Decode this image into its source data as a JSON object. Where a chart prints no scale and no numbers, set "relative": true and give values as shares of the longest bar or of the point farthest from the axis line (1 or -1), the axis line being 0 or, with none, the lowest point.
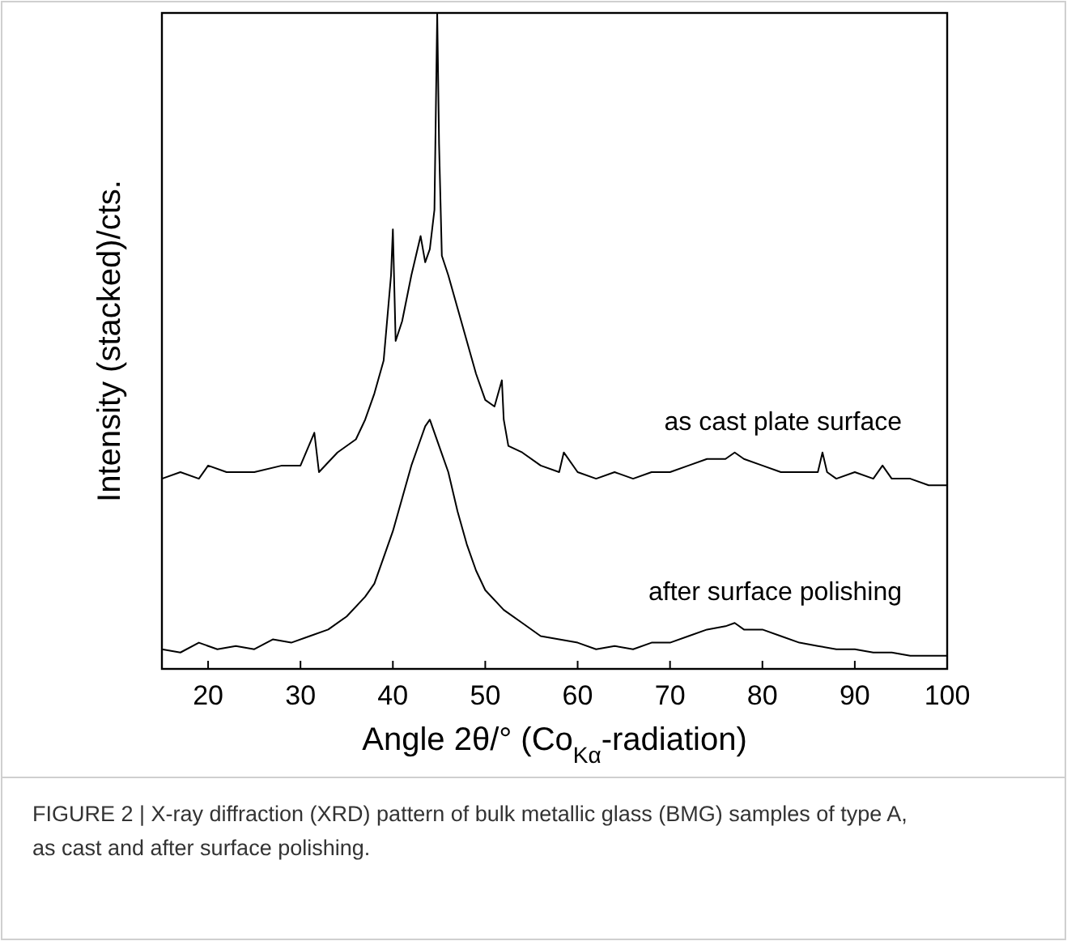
{
  "chart_data": {
    "type": "line",
    "relative": true,
    "xlabel": "Angle 2θ/° (Co$_{Kα}$-radiation)",
    "ylabel": "Intensity (stacked)/cts.",
    "xlim": [
      15,
      100
    ],
    "xticks": [
      20,
      30,
      40,
      50,
      60,
      70,
      80,
      90,
      100
    ],
    "tick_labels": "x",
    "grid": false,
    "line_style": "solid",
    "annotations": [
      "FIGURE 2 | X-ray diffraction (XRD) pattern of bulk metallic glass (BMG) samples of type A, as cast and after surface polishing."
    ],
    "series": [
      {
        "name": "as cast plate surface",
        "color": "#000000",
        "x": [
          15,
          17,
          19,
          20,
          22,
          25,
          28,
          30,
          31.5,
          32,
          34,
          36,
          37,
          38,
          39,
          39.8,
          40,
          40.3,
          41,
          42,
          42.5,
          43,
          43.5,
          44,
          44.5,
          44.8,
          45,
          45.3,
          46,
          47,
          48,
          49,
          50,
          51,
          51.8,
          52,
          52.5,
          54,
          56,
          58,
          58.5,
          60,
          62,
          64,
          66,
          68,
          70,
          72,
          74,
          76,
          77,
          78,
          80,
          82,
          84,
          86,
          86.5,
          87,
          88,
          90,
          92,
          93,
          94,
          96,
          98,
          100
        ],
        "values": [
          0.29,
          0.3,
          0.29,
          0.31,
          0.3,
          0.3,
          0.31,
          0.31,
          0.36,
          0.3,
          0.33,
          0.35,
          0.38,
          0.42,
          0.47,
          0.6,
          0.67,
          0.5,
          0.53,
          0.6,
          0.63,
          0.66,
          0.62,
          0.64,
          0.7,
          1.0,
          0.8,
          0.63,
          0.6,
          0.55,
          0.5,
          0.45,
          0.41,
          0.4,
          0.44,
          0.38,
          0.34,
          0.33,
          0.31,
          0.3,
          0.33,
          0.3,
          0.29,
          0.3,
          0.29,
          0.3,
          0.3,
          0.31,
          0.32,
          0.32,
          0.33,
          0.32,
          0.31,
          0.3,
          0.3,
          0.3,
          0.33,
          0.3,
          0.29,
          0.3,
          0.29,
          0.31,
          0.29,
          0.29,
          0.28,
          0.28
        ]
      },
      {
        "name": "after surface polishing",
        "color": "#000000",
        "x": [
          15,
          17,
          19,
          21,
          23,
          25,
          27,
          29,
          31,
          33,
          35,
          37,
          38,
          39,
          40,
          41,
          42,
          43,
          43.5,
          44,
          44.5,
          45,
          46,
          47,
          48,
          49,
          50,
          52,
          54,
          56,
          58,
          60,
          62,
          64,
          66,
          68,
          70,
          72,
          74,
          76,
          77,
          78,
          80,
          82,
          84,
          86,
          88,
          90,
          92,
          94,
          96,
          98,
          100
        ],
        "values": [
          0.03,
          0.025,
          0.04,
          0.03,
          0.035,
          0.03,
          0.045,
          0.04,
          0.05,
          0.06,
          0.08,
          0.11,
          0.13,
          0.17,
          0.21,
          0.26,
          0.31,
          0.35,
          0.37,
          0.38,
          0.36,
          0.34,
          0.3,
          0.24,
          0.19,
          0.15,
          0.12,
          0.09,
          0.07,
          0.05,
          0.045,
          0.04,
          0.03,
          0.035,
          0.03,
          0.04,
          0.04,
          0.05,
          0.06,
          0.065,
          0.07,
          0.06,
          0.06,
          0.05,
          0.04,
          0.035,
          0.03,
          0.03,
          0.025,
          0.025,
          0.02,
          0.02,
          0.02
        ]
      }
    ]
  }
}
